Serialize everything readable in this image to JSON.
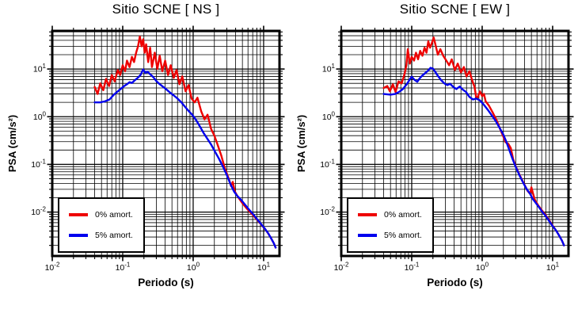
{
  "page": {
    "background": "#ffffff"
  },
  "chart_data": [
    {
      "type": "line",
      "title": "Sitio SCNE [ NS ]",
      "xlabel": "Periodo (s)",
      "ylabel": "PSA (cm/s²)",
      "x_scale": "log",
      "y_scale": "log",
      "x_range": [
        0.01,
        16.8
      ],
      "y_range": [
        0.0012,
        63
      ],
      "x_tick_exponents": [
        -2,
        -1,
        0,
        1
      ],
      "y_tick_exponents": [
        1,
        0,
        -1,
        -2
      ],
      "grid": "major+minor log grid, black, on",
      "legend_position": "lower-left",
      "frame_color": "#000000",
      "series": [
        {
          "label": "0% amort.",
          "color": "#ee0000",
          "points": [
            [
              0.04,
              4.2
            ],
            [
              0.044,
              3.0
            ],
            [
              0.048,
              5.0
            ],
            [
              0.053,
              3.6
            ],
            [
              0.058,
              6.2
            ],
            [
              0.064,
              4.4
            ],
            [
              0.07,
              7.5
            ],
            [
              0.077,
              5.5
            ],
            [
              0.085,
              9.5
            ],
            [
              0.092,
              7.5
            ],
            [
              0.1,
              12
            ],
            [
              0.108,
              9.0
            ],
            [
              0.115,
              15
            ],
            [
              0.125,
              11
            ],
            [
              0.135,
              18
            ],
            [
              0.145,
              14
            ],
            [
              0.155,
              22
            ],
            [
              0.165,
              30
            ],
            [
              0.175,
              48
            ],
            [
              0.185,
              30
            ],
            [
              0.195,
              42
            ],
            [
              0.205,
              22
            ],
            [
              0.215,
              33
            ],
            [
              0.23,
              14
            ],
            [
              0.245,
              28
            ],
            [
              0.26,
              11
            ],
            [
              0.285,
              22
            ],
            [
              0.31,
              10
            ],
            [
              0.335,
              19
            ],
            [
              0.365,
              9.0
            ],
            [
              0.4,
              15
            ],
            [
              0.44,
              7.5
            ],
            [
              0.48,
              12
            ],
            [
              0.53,
              6.5
            ],
            [
              0.58,
              9.5
            ],
            [
              0.64,
              4.8
            ],
            [
              0.7,
              7.0
            ],
            [
              0.78,
              3.4
            ],
            [
              0.86,
              4.6
            ],
            [
              0.95,
              2.4
            ],
            [
              1.05,
              2.0
            ],
            [
              1.15,
              2.5
            ],
            [
              1.3,
              1.3
            ],
            [
              1.45,
              0.88
            ],
            [
              1.6,
              1.1
            ],
            [
              1.8,
              0.55
            ],
            [
              2.0,
              0.4
            ],
            [
              2.2,
              0.27
            ],
            [
              2.5,
              0.155
            ],
            [
              2.8,
              0.085
            ],
            [
              3.2,
              0.05
            ],
            [
              3.45,
              0.035
            ],
            [
              3.65,
              0.043
            ],
            [
              3.9,
              0.027
            ],
            [
              4.3,
              0.021
            ],
            [
              4.9,
              0.016
            ],
            [
              5.6,
              0.0125
            ],
            [
              6.4,
              0.01
            ],
            [
              7.3,
              0.0082
            ],
            [
              8.3,
              0.0066
            ],
            [
              9.4,
              0.0053
            ],
            [
              10.5,
              0.0044
            ],
            [
              11.7,
              0.0035
            ],
            [
              12.8,
              0.0028
            ],
            [
              14.0,
              0.0022
            ],
            [
              14.8,
              0.0018
            ]
          ]
        },
        {
          "label": "5% amort.",
          "color": "#0000ee",
          "points": [
            [
              0.04,
              2.0
            ],
            [
              0.048,
              2.0
            ],
            [
              0.056,
              2.1
            ],
            [
              0.065,
              2.3
            ],
            [
              0.075,
              2.9
            ],
            [
              0.085,
              3.4
            ],
            [
              0.095,
              3.9
            ],
            [
              0.105,
              4.4
            ],
            [
              0.115,
              4.8
            ],
            [
              0.125,
              5.3
            ],
            [
              0.135,
              5.1
            ],
            [
              0.15,
              5.9
            ],
            [
              0.165,
              6.6
            ],
            [
              0.18,
              7.6
            ],
            [
              0.195,
              9.8
            ],
            [
              0.21,
              8.3
            ],
            [
              0.225,
              8.8
            ],
            [
              0.245,
              7.8
            ],
            [
              0.27,
              6.8
            ],
            [
              0.3,
              5.6
            ],
            [
              0.33,
              4.9
            ],
            [
              0.37,
              4.3
            ],
            [
              0.42,
              3.7
            ],
            [
              0.47,
              3.2
            ],
            [
              0.53,
              2.8
            ],
            [
              0.6,
              2.4
            ],
            [
              0.68,
              2.0
            ],
            [
              0.77,
              1.6
            ],
            [
              0.87,
              1.3
            ],
            [
              0.97,
              1.1
            ],
            [
              1.1,
              0.85
            ],
            [
              1.25,
              0.62
            ],
            [
              1.4,
              0.46
            ],
            [
              1.6,
              0.34
            ],
            [
              1.8,
              0.26
            ],
            [
              2.0,
              0.195
            ],
            [
              2.3,
              0.135
            ],
            [
              2.6,
              0.095
            ],
            [
              3.0,
              0.06
            ],
            [
              3.4,
              0.038
            ],
            [
              3.8,
              0.027
            ],
            [
              4.2,
              0.022
            ],
            [
              4.8,
              0.018
            ],
            [
              5.4,
              0.0145
            ],
            [
              6.2,
              0.0113
            ],
            [
              7.2,
              0.0088
            ],
            [
              8.2,
              0.0069
            ],
            [
              9.3,
              0.0055
            ],
            [
              10.4,
              0.0045
            ],
            [
              11.6,
              0.0036
            ],
            [
              12.8,
              0.0028
            ],
            [
              14.0,
              0.0022
            ],
            [
              14.8,
              0.0018
            ]
          ]
        }
      ]
    },
    {
      "type": "line",
      "title": "Sitio SCNE [ EW ]",
      "xlabel": "Periodo (s)",
      "ylabel": "PSA (cm/s²)",
      "x_scale": "log",
      "y_scale": "log",
      "x_range": [
        0.01,
        16.8
      ],
      "y_range": [
        0.0012,
        63
      ],
      "x_tick_exponents": [
        -2,
        -1,
        0,
        1
      ],
      "y_tick_exponents": [
        1,
        0,
        -1,
        -2
      ],
      "grid": "major+minor log grid, black, on",
      "legend_position": "lower-left",
      "frame_color": "#000000",
      "series": [
        {
          "label": "0% amort.",
          "color": "#ee0000",
          "points": [
            [
              0.04,
              4.0
            ],
            [
              0.045,
              4.4
            ],
            [
              0.049,
              3.4
            ],
            [
              0.054,
              4.8
            ],
            [
              0.059,
              3.3
            ],
            [
              0.065,
              5.5
            ],
            [
              0.072,
              5.0
            ],
            [
              0.079,
              7.8
            ],
            [
              0.084,
              12
            ],
            [
              0.088,
              26
            ],
            [
              0.094,
              13
            ],
            [
              0.1,
              18
            ],
            [
              0.108,
              15
            ],
            [
              0.115,
              22
            ],
            [
              0.123,
              16
            ],
            [
              0.132,
              24
            ],
            [
              0.142,
              19
            ],
            [
              0.152,
              28
            ],
            [
              0.162,
              22
            ],
            [
              0.172,
              38
            ],
            [
              0.182,
              28
            ],
            [
              0.192,
              34
            ],
            [
              0.205,
              46
            ],
            [
              0.22,
              30
            ],
            [
              0.235,
              20
            ],
            [
              0.255,
              26
            ],
            [
              0.28,
              19
            ],
            [
              0.31,
              15
            ],
            [
              0.34,
              12
            ],
            [
              0.37,
              16
            ],
            [
              0.41,
              9.5
            ],
            [
              0.45,
              13
            ],
            [
              0.5,
              8.5
            ],
            [
              0.55,
              11
            ],
            [
              0.6,
              7.0
            ],
            [
              0.66,
              9.0
            ],
            [
              0.72,
              5.8
            ],
            [
              0.78,
              4.2
            ],
            [
              0.82,
              2.6
            ],
            [
              0.86,
              2.5
            ],
            [
              0.93,
              3.4
            ],
            [
              1.0,
              2.7
            ],
            [
              1.06,
              3.0
            ],
            [
              1.12,
              2.1
            ],
            [
              1.25,
              1.7
            ],
            [
              1.4,
              1.25
            ],
            [
              1.6,
              0.85
            ],
            [
              1.8,
              0.55
            ],
            [
              2.0,
              0.38
            ],
            [
              2.15,
              0.29
            ],
            [
              2.35,
              0.27
            ],
            [
              2.55,
              0.22
            ],
            [
              2.75,
              0.13
            ],
            [
              3.0,
              0.09
            ],
            [
              3.4,
              0.06
            ],
            [
              3.9,
              0.04
            ],
            [
              4.4,
              0.028
            ],
            [
              4.8,
              0.024
            ],
            [
              5.0,
              0.033
            ],
            [
              5.25,
              0.025
            ],
            [
              5.6,
              0.018
            ],
            [
              6.2,
              0.014
            ],
            [
              7.0,
              0.011
            ],
            [
              8.0,
              0.0085
            ],
            [
              9.0,
              0.0066
            ],
            [
              10.0,
              0.0052
            ],
            [
              11.2,
              0.0041
            ],
            [
              12.4,
              0.0032
            ],
            [
              13.6,
              0.0025
            ],
            [
              14.5,
              0.002
            ]
          ]
        },
        {
          "label": "5% amort.",
          "color": "#0000ee",
          "points": [
            [
              0.04,
              3.0
            ],
            [
              0.05,
              2.9
            ],
            [
              0.058,
              3.0
            ],
            [
              0.066,
              3.3
            ],
            [
              0.075,
              3.8
            ],
            [
              0.085,
              4.8
            ],
            [
              0.095,
              6.2
            ],
            [
              0.1,
              6.9
            ],
            [
              0.11,
              5.9
            ],
            [
              0.12,
              5.4
            ],
            [
              0.13,
              6.4
            ],
            [
              0.14,
              7.2
            ],
            [
              0.155,
              8.2
            ],
            [
              0.17,
              9.2
            ],
            [
              0.185,
              10.6
            ],
            [
              0.2,
              10.2
            ],
            [
              0.215,
              8.8
            ],
            [
              0.235,
              7.2
            ],
            [
              0.26,
              5.9
            ],
            [
              0.29,
              5.0
            ],
            [
              0.32,
              4.6
            ],
            [
              0.35,
              4.9
            ],
            [
              0.39,
              4.2
            ],
            [
              0.43,
              3.8
            ],
            [
              0.48,
              4.3
            ],
            [
              0.53,
              3.7
            ],
            [
              0.59,
              3.3
            ],
            [
              0.66,
              2.6
            ],
            [
              0.74,
              2.3
            ],
            [
              0.83,
              2.4
            ],
            [
              0.93,
              2.2
            ],
            [
              1.05,
              1.8
            ],
            [
              1.2,
              1.4
            ],
            [
              1.35,
              1.1
            ],
            [
              1.55,
              0.82
            ],
            [
              1.75,
              0.6
            ],
            [
              2.0,
              0.42
            ],
            [
              2.2,
              0.3
            ],
            [
              2.4,
              0.21
            ],
            [
              2.7,
              0.13
            ],
            [
              3.0,
              0.088
            ],
            [
              3.4,
              0.058
            ],
            [
              3.9,
              0.039
            ],
            [
              4.3,
              0.03
            ],
            [
              4.8,
              0.024
            ],
            [
              5.2,
              0.019
            ],
            [
              5.6,
              0.0165
            ],
            [
              6.2,
              0.0135
            ],
            [
              7.0,
              0.0105
            ],
            [
              8.0,
              0.0082
            ],
            [
              9.0,
              0.0064
            ],
            [
              10.0,
              0.0051
            ],
            [
              11.2,
              0.0041
            ],
            [
              12.4,
              0.0032
            ],
            [
              13.6,
              0.0025
            ],
            [
              14.5,
              0.002
            ]
          ]
        }
      ]
    }
  ]
}
